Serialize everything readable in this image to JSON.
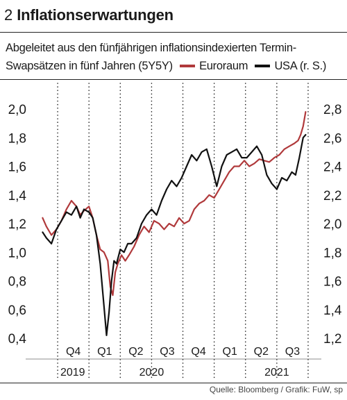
{
  "header": {
    "number": "2",
    "title": "Inflationserwartungen"
  },
  "subtitle": "Abgeleitet aus den fünfjährigen inflationsindexierten Termin-Swapsätzen in fünf Jahren (5Y5Y)",
  "source": "Quelle: Bloomberg / Grafik: FuW, sp",
  "colors": {
    "euro": "#b0393b",
    "usa": "#111111",
    "grid": "#222222"
  },
  "chart_data": {
    "type": "line",
    "x_ticks": [
      "Q4",
      "Q1",
      "Q2",
      "Q3",
      "Q4",
      "Q1",
      "Q2",
      "Q3"
    ],
    "year_labels": [
      "2019",
      "2020",
      "2021"
    ],
    "y_left": {
      "range": [
        0.4,
        2.0
      ],
      "ticks": [
        "2,0",
        "1,8",
        "1,6",
        "1,4",
        "1,2",
        "1,0",
        "0,8",
        "0,6",
        "0,4"
      ]
    },
    "y_right": {
      "range": [
        1.2,
        2.8
      ],
      "ticks": [
        "2,8",
        "2,6",
        "2,4",
        "2,2",
        "2,0",
        "1,8",
        "1,6",
        "1,4",
        "1,2"
      ]
    },
    "grid": "dotted vertical",
    "series": [
      {
        "name": "Euroraum",
        "axis": "left",
        "x": [
          2019.63,
          2019.66,
          2019.7,
          2019.74,
          2019.78,
          2019.82,
          2019.86,
          2019.9,
          2019.93,
          2019.96,
          2020.0,
          2020.03,
          2020.06,
          2020.09,
          2020.12,
          2020.15,
          2020.17,
          2020.19,
          2020.21,
          2020.23,
          2020.26,
          2020.29,
          2020.32,
          2020.36,
          2020.4,
          2020.44,
          2020.48,
          2020.52,
          2020.56,
          2020.6,
          2020.64,
          2020.68,
          2020.72,
          2020.76,
          2020.8,
          2020.84,
          2020.88,
          2020.92,
          2020.96,
          2021.0,
          2021.04,
          2021.08,
          2021.12,
          2021.16,
          2021.2,
          2021.24,
          2021.28,
          2021.32,
          2021.36,
          2021.4,
          2021.44,
          2021.48,
          2021.52,
          2021.56,
          2021.6,
          2021.64,
          2021.67,
          2021.69,
          2021.71,
          2021.73
        ],
        "values": [
          1.24,
          1.18,
          1.12,
          1.16,
          1.22,
          1.3,
          1.36,
          1.32,
          1.26,
          1.29,
          1.32,
          1.24,
          1.12,
          1.02,
          1.0,
          0.94,
          0.76,
          0.7,
          0.86,
          0.92,
          0.98,
          0.94,
          0.98,
          1.04,
          1.12,
          1.18,
          1.14,
          1.22,
          1.2,
          1.16,
          1.2,
          1.18,
          1.24,
          1.2,
          1.22,
          1.3,
          1.34,
          1.36,
          1.4,
          1.38,
          1.44,
          1.5,
          1.56,
          1.6,
          1.6,
          1.64,
          1.6,
          1.62,
          1.65,
          1.64,
          1.63,
          1.66,
          1.68,
          1.72,
          1.74,
          1.76,
          1.78,
          1.82,
          1.88,
          1.98
        ]
      },
      {
        "name": "USA (r. S.)",
        "axis": "right",
        "x": [
          2019.63,
          2019.66,
          2019.7,
          2019.74,
          2019.78,
          2019.82,
          2019.86,
          2019.9,
          2019.93,
          2019.96,
          2020.0,
          2020.03,
          2020.06,
          2020.09,
          2020.12,
          2020.14,
          2020.16,
          2020.18,
          2020.2,
          2020.22,
          2020.25,
          2020.28,
          2020.31,
          2020.34,
          2020.38,
          2020.42,
          2020.46,
          2020.5,
          2020.54,
          2020.58,
          2020.62,
          2020.66,
          2020.7,
          2020.74,
          2020.78,
          2020.82,
          2020.86,
          2020.9,
          2020.94,
          2020.98,
          2021.02,
          2021.06,
          2021.1,
          2021.14,
          2021.18,
          2021.22,
          2021.26,
          2021.3,
          2021.34,
          2021.38,
          2021.42,
          2021.46,
          2021.5,
          2021.54,
          2021.58,
          2021.62,
          2021.65,
          2021.68,
          2021.71,
          2021.73
        ],
        "values": [
          1.94,
          1.9,
          1.86,
          1.96,
          2.02,
          2.08,
          2.06,
          2.12,
          2.04,
          2.1,
          2.08,
          2.04,
          1.92,
          1.72,
          1.42,
          1.22,
          1.38,
          1.6,
          1.74,
          1.72,
          1.82,
          1.8,
          1.86,
          1.86,
          1.9,
          2.0,
          2.06,
          2.1,
          2.06,
          2.16,
          2.24,
          2.3,
          2.26,
          2.32,
          2.4,
          2.48,
          2.44,
          2.5,
          2.52,
          2.4,
          2.26,
          2.4,
          2.48,
          2.5,
          2.52,
          2.46,
          2.46,
          2.5,
          2.54,
          2.48,
          2.34,
          2.28,
          2.24,
          2.32,
          2.3,
          2.36,
          2.34,
          2.46,
          2.6,
          2.62
        ]
      }
    ]
  }
}
